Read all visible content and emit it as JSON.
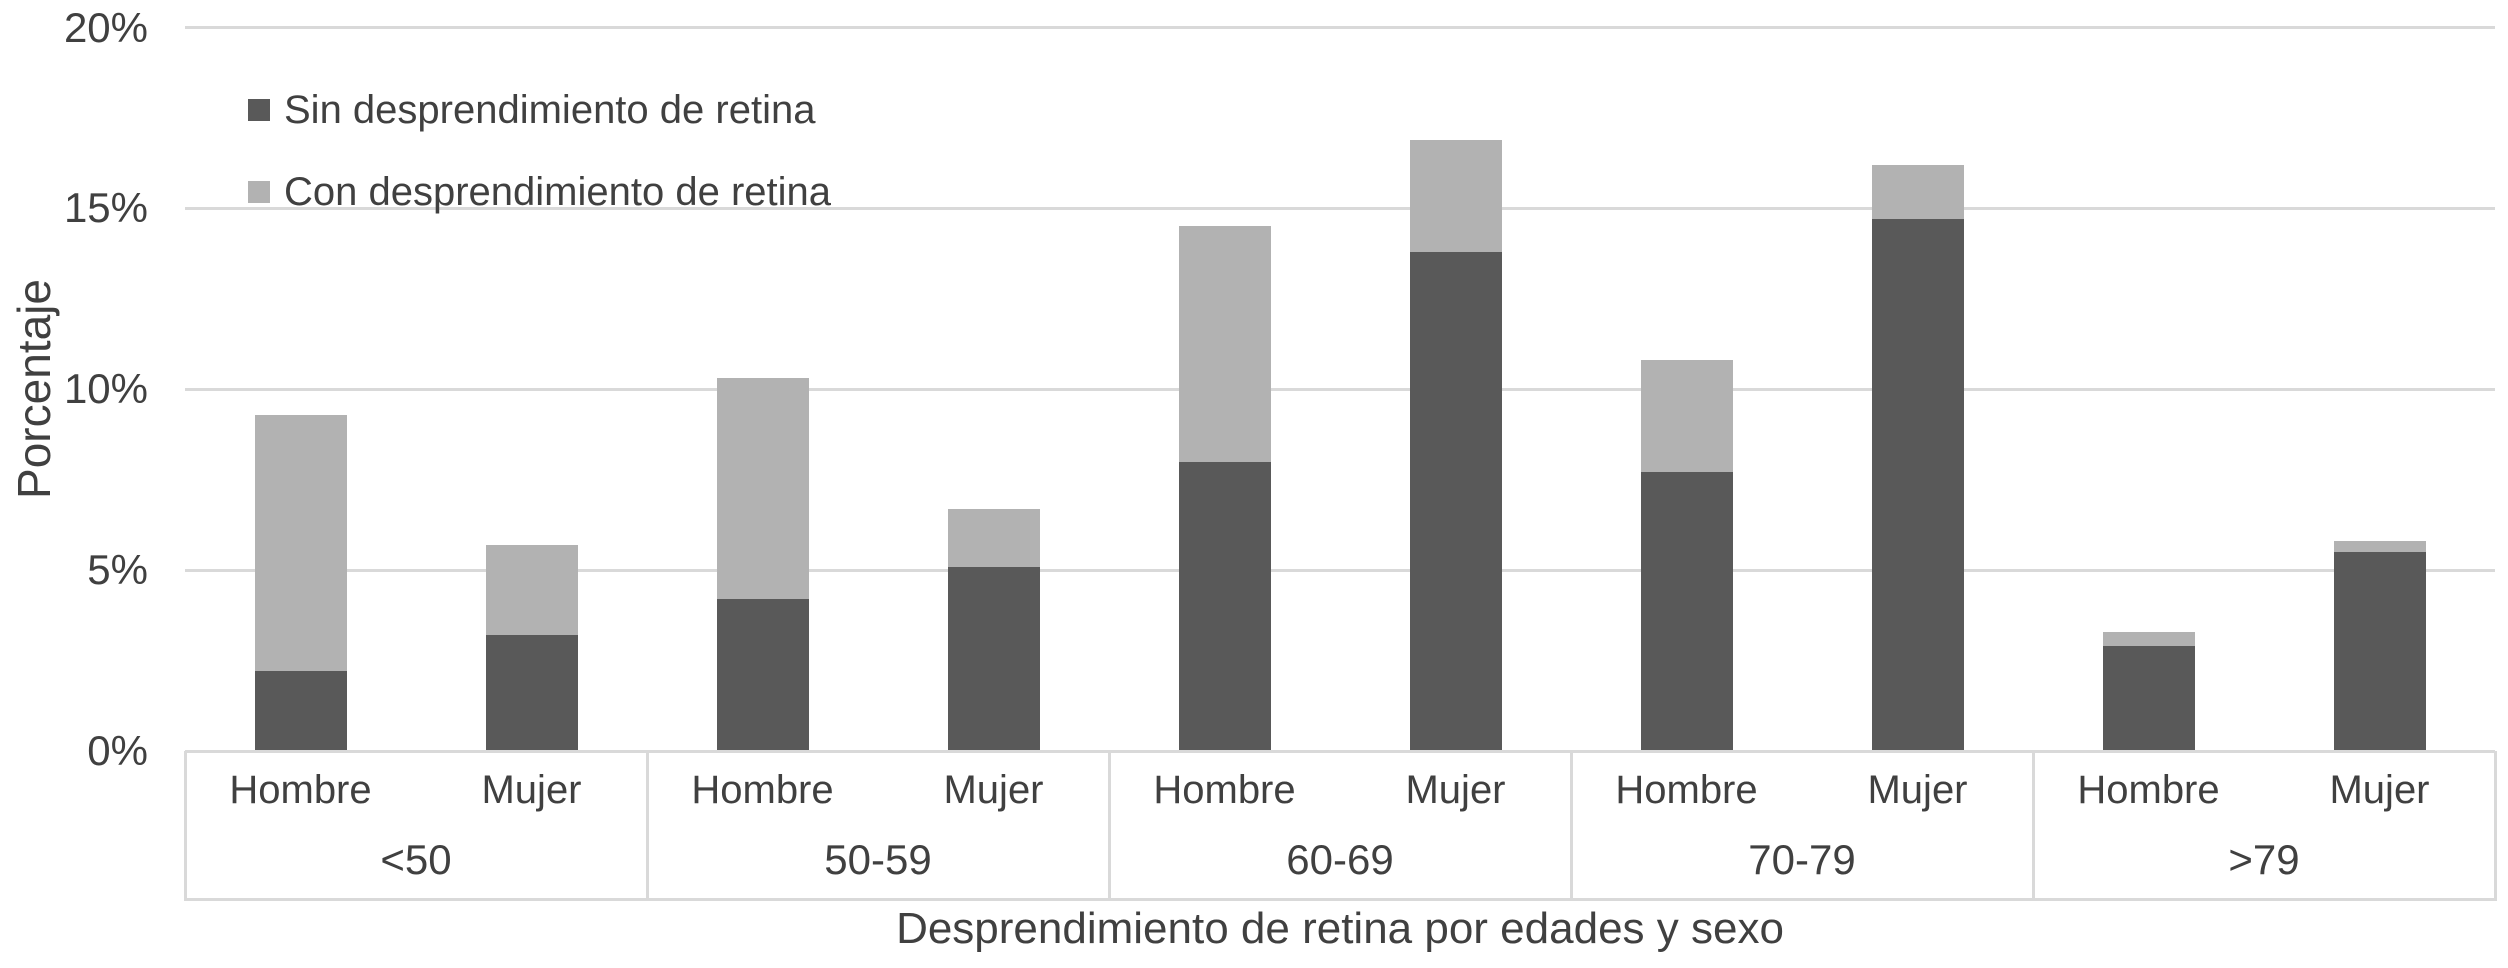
{
  "chart_data": {
    "type": "stacked-bar",
    "y_axis": {
      "title": "Porcentaje",
      "range": [
        0,
        20
      ],
      "ticks": [
        {
          "label": "0%",
          "value": 0
        },
        {
          "label": "5%",
          "value": 5
        },
        {
          "label": "10%",
          "value": 10
        },
        {
          "label": "15%",
          "value": 15
        },
        {
          "label": "20%",
          "value": 20
        }
      ]
    },
    "x_axis": {
      "title": "Desprendimiento de retina por edades y sexo",
      "groups": [
        "<50",
        "50-59",
        "60-69",
        "70-79",
        ">79"
      ],
      "subcategories": [
        "Hombre",
        "Mujer"
      ]
    },
    "series": [
      {
        "name": "Sin desprendimiento de retina",
        "color": "#595959",
        "values": [
          2.2,
          3.2,
          4.2,
          5.1,
          8.0,
          13.8,
          7.7,
          14.7,
          2.9,
          5.5
        ]
      },
      {
        "name": "Con desprendimiento de retina",
        "color": "#b2b2b2",
        "values": [
          7.1,
          2.5,
          6.1,
          1.6,
          6.5,
          3.1,
          3.1,
          1.5,
          0.4,
          0.3
        ]
      }
    ],
    "stacked_totals": [
      9.3,
      5.7,
      10.3,
      6.7,
      14.5,
      16.9,
      10.8,
      16.2,
      3.3,
      5.8
    ],
    "legend_position": "top-left",
    "grid": true
  }
}
